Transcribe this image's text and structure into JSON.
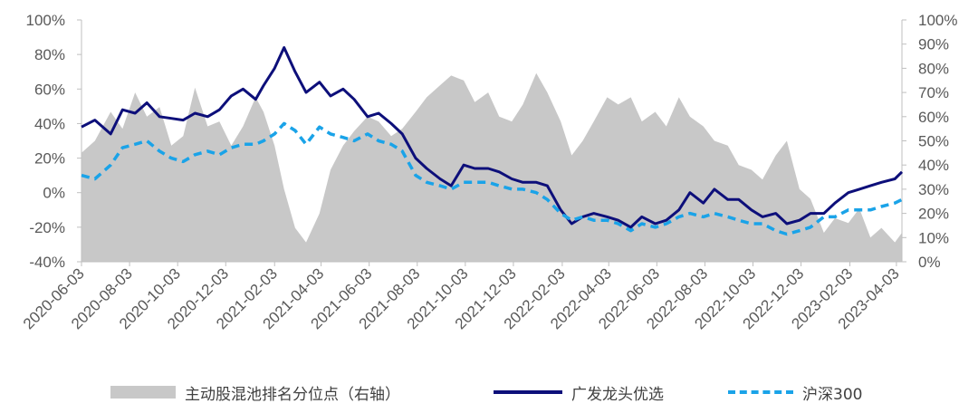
{
  "chart_data": {
    "type": "line",
    "x_ticks": [
      "2020-06-03",
      "2020-08-03",
      "2020-10-03",
      "2020-12-03",
      "2021-02-03",
      "2021-04-03",
      "2021-06-03",
      "2021-08-03",
      "2021-10-03",
      "2021-12-03",
      "2022-02-03",
      "2022-04-03",
      "2022-06-03",
      "2022-08-03",
      "2022-10-03",
      "2022-12-03",
      "2023-02-03",
      "2023-04-03"
    ],
    "y_left": {
      "ticks": [
        "100%",
        "80%",
        "60%",
        "40%",
        "20%",
        "0%",
        "-20%",
        "-40%"
      ],
      "range": [
        -40,
        100
      ],
      "unit": "%"
    },
    "y_right": {
      "ticks": [
        "100%",
        "90%",
        "80%",
        "70%",
        "60%",
        "50%",
        "40%",
        "30%",
        "20%",
        "10%",
        "0%"
      ],
      "range": [
        0,
        100
      ],
      "unit": "%"
    },
    "series": [
      {
        "name": "主动股混池排名分位点（右轴）",
        "kind": "area",
        "axis": "right",
        "color": "#c8c8c8",
        "x": [
          "2020-06-03",
          "2020-06-20",
          "2020-07-10",
          "2020-07-25",
          "2020-08-10",
          "2020-08-25",
          "2020-09-10",
          "2020-09-25",
          "2020-10-10",
          "2020-10-25",
          "2020-11-10",
          "2020-11-25",
          "2020-12-10",
          "2020-12-25",
          "2021-01-10",
          "2021-01-20",
          "2021-02-03",
          "2021-02-15",
          "2021-03-01",
          "2021-03-15",
          "2021-04-01",
          "2021-04-15",
          "2021-05-01",
          "2021-05-15",
          "2021-06-01",
          "2021-06-15",
          "2021-07-01",
          "2021-07-15",
          "2021-08-01",
          "2021-08-15",
          "2021-09-01",
          "2021-09-15",
          "2021-10-01",
          "2021-10-15",
          "2021-11-01",
          "2021-11-15",
          "2021-12-01",
          "2021-12-15",
          "2022-01-01",
          "2022-01-15",
          "2022-02-01",
          "2022-02-15",
          "2022-03-01",
          "2022-03-15",
          "2022-04-01",
          "2022-04-15",
          "2022-05-01",
          "2022-05-15",
          "2022-06-01",
          "2022-06-15",
          "2022-07-01",
          "2022-07-15",
          "2022-08-01",
          "2022-08-15",
          "2022-09-01",
          "2022-09-15",
          "2022-10-01",
          "2022-10-15",
          "2022-11-01",
          "2022-11-15",
          "2022-12-01",
          "2022-12-15",
          "2023-01-01",
          "2023-01-15",
          "2023-02-01",
          "2023-02-15",
          "2023-03-01",
          "2023-03-15",
          "2023-04-01",
          "2023-04-10"
        ],
        "y": [
          45,
          50,
          62,
          55,
          70,
          60,
          64,
          48,
          52,
          72,
          56,
          58,
          48,
          56,
          68,
          62,
          48,
          30,
          14,
          8,
          20,
          38,
          48,
          54,
          60,
          58,
          52,
          55,
          62,
          68,
          73,
          77,
          75,
          66,
          70,
          60,
          58,
          65,
          78,
          70,
          58,
          44,
          50,
          58,
          68,
          65,
          68,
          58,
          62,
          56,
          68,
          60,
          56,
          50,
          48,
          40,
          38,
          34,
          44,
          50,
          30,
          26,
          12,
          18,
          16,
          22,
          10,
          14,
          8,
          12
        ]
      },
      {
        "name": "广发龙头优选",
        "kind": "line",
        "axis": "left",
        "color": "#0d0f7a",
        "x": [
          "2020-06-03",
          "2020-06-20",
          "2020-07-10",
          "2020-07-25",
          "2020-08-10",
          "2020-08-25",
          "2020-09-10",
          "2020-09-25",
          "2020-10-10",
          "2020-10-25",
          "2020-11-10",
          "2020-11-25",
          "2020-12-10",
          "2020-12-25",
          "2021-01-10",
          "2021-01-20",
          "2021-02-03",
          "2021-02-15",
          "2021-03-01",
          "2021-03-15",
          "2021-04-01",
          "2021-04-15",
          "2021-05-01",
          "2021-05-15",
          "2021-06-01",
          "2021-06-15",
          "2021-07-01",
          "2021-07-15",
          "2021-08-01",
          "2021-08-15",
          "2021-09-01",
          "2021-09-15",
          "2021-10-01",
          "2021-10-15",
          "2021-11-01",
          "2021-11-15",
          "2021-12-01",
          "2021-12-15",
          "2022-01-01",
          "2022-01-15",
          "2022-02-01",
          "2022-02-15",
          "2022-03-01",
          "2022-03-15",
          "2022-04-01",
          "2022-04-15",
          "2022-05-01",
          "2022-05-15",
          "2022-06-01",
          "2022-06-15",
          "2022-07-01",
          "2022-07-15",
          "2022-08-01",
          "2022-08-15",
          "2022-09-01",
          "2022-09-15",
          "2022-10-01",
          "2022-10-15",
          "2022-11-01",
          "2022-11-15",
          "2022-12-01",
          "2022-12-15",
          "2023-01-01",
          "2023-01-15",
          "2023-02-01",
          "2023-02-15",
          "2023-03-01",
          "2023-03-15",
          "2023-04-01",
          "2023-04-10"
        ],
        "y": [
          38,
          42,
          34,
          48,
          46,
          52,
          44,
          43,
          42,
          46,
          44,
          48,
          56,
          60,
          54,
          62,
          72,
          84,
          70,
          58,
          64,
          56,
          60,
          54,
          44,
          46,
          40,
          34,
          20,
          14,
          8,
          4,
          16,
          14,
          14,
          12,
          8,
          6,
          6,
          4,
          -10,
          -18,
          -14,
          -12,
          -14,
          -16,
          -20,
          -14,
          -18,
          -16,
          -10,
          0,
          -6,
          2,
          -4,
          -4,
          -10,
          -14,
          -12,
          -18,
          -16,
          -12,
          -12,
          -6,
          0,
          2,
          4,
          6,
          8,
          12
        ]
      },
      {
        "name": "沪深300",
        "kind": "line",
        "dashed": true,
        "axis": "left",
        "color": "#1aa3e8",
        "x": [
          "2020-06-03",
          "2020-06-20",
          "2020-07-10",
          "2020-07-25",
          "2020-08-10",
          "2020-08-25",
          "2020-09-10",
          "2020-09-25",
          "2020-10-10",
          "2020-10-25",
          "2020-11-10",
          "2020-11-25",
          "2020-12-10",
          "2020-12-25",
          "2021-01-10",
          "2021-01-20",
          "2021-02-03",
          "2021-02-15",
          "2021-03-01",
          "2021-03-15",
          "2021-04-01",
          "2021-04-15",
          "2021-05-01",
          "2021-05-15",
          "2021-06-01",
          "2021-06-15",
          "2021-07-01",
          "2021-07-15",
          "2021-08-01",
          "2021-08-15",
          "2021-09-01",
          "2021-09-15",
          "2021-10-01",
          "2021-10-15",
          "2021-11-01",
          "2021-11-15",
          "2021-12-01",
          "2021-12-15",
          "2022-01-01",
          "2022-01-15",
          "2022-02-01",
          "2022-02-15",
          "2022-03-01",
          "2022-03-15",
          "2022-04-01",
          "2022-04-15",
          "2022-05-01",
          "2022-05-15",
          "2022-06-01",
          "2022-06-15",
          "2022-07-01",
          "2022-07-15",
          "2022-08-01",
          "2022-08-15",
          "2022-09-01",
          "2022-09-15",
          "2022-10-01",
          "2022-10-15",
          "2022-11-01",
          "2022-11-15",
          "2022-12-01",
          "2022-12-15",
          "2023-01-01",
          "2023-01-15",
          "2023-02-01",
          "2023-02-15",
          "2023-03-01",
          "2023-03-15",
          "2023-04-01",
          "2023-04-10"
        ],
        "y": [
          10,
          8,
          16,
          26,
          28,
          30,
          24,
          20,
          18,
          22,
          24,
          22,
          26,
          28,
          28,
          30,
          34,
          40,
          36,
          28,
          38,
          34,
          32,
          30,
          34,
          30,
          28,
          24,
          10,
          6,
          4,
          2,
          6,
          6,
          6,
          4,
          2,
          2,
          0,
          -4,
          -12,
          -16,
          -14,
          -16,
          -16,
          -18,
          -22,
          -18,
          -20,
          -18,
          -14,
          -12,
          -14,
          -12,
          -14,
          -16,
          -18,
          -18,
          -22,
          -24,
          -22,
          -20,
          -14,
          -14,
          -10,
          -10,
          -10,
          -8,
          -6,
          -4
        ]
      }
    ]
  }
}
